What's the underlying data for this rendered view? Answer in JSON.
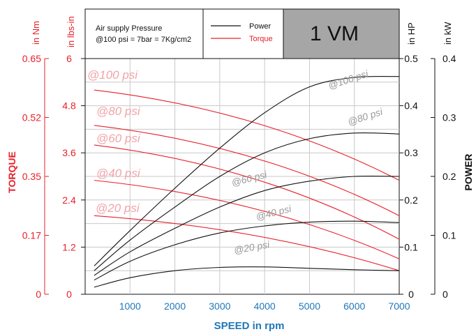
{
  "chart_data": {
    "type": "line",
    "model": "1 VM",
    "header": {
      "supply_line1": "Air supply Pressure",
      "supply_line2": "@100 psi = 7bar = 7Kg/cm2",
      "legend_power": "Power",
      "legend_torque": "Torque"
    },
    "colors": {
      "torque": "#e8202a",
      "power": "#111111",
      "speed_axis": "#1f77b8",
      "model_box": "#a6a6a6",
      "grid": "#c8c8c8"
    },
    "x_axis": {
      "title": "SPEED in rpm",
      "range": [
        0,
        7000
      ],
      "ticks": [
        "1000",
        "2000",
        "3000",
        "4000",
        "5000",
        "6000",
        "7000"
      ]
    },
    "torque_axes": {
      "title": "TORQUE",
      "nm_unit": "in Nm",
      "nm_ticks": [
        "0.65",
        "0.52",
        "0.35",
        "0.17",
        "0"
      ],
      "lbsin_unit": "in lbs-in",
      "lbsin_ticks": [
        "6",
        "4.8",
        "3.6",
        "2.4",
        "1.2",
        "0"
      ],
      "lbsin_range": [
        0,
        6
      ]
    },
    "power_axes": {
      "title": "POWER",
      "hp_unit": "in HP",
      "hp_ticks": [
        "0.5",
        "0.4",
        "0.3",
        "0.2",
        "0.1",
        "0"
      ],
      "hp_range": [
        0,
        0.5
      ],
      "kw_unit": "in kW",
      "kw_ticks": [
        "0.4",
        "0.3",
        "0.2",
        "0.1",
        "0"
      ]
    },
    "torque_series": [
      {
        "label": "@100 psi",
        "x": [
          200,
          7000
        ],
        "y": [
          5.2,
          2.9
        ]
      },
      {
        "label": "@80 psi",
        "x": [
          200,
          7000
        ],
        "y": [
          4.3,
          2.0
        ]
      },
      {
        "label": "@60 psi",
        "x": [
          200,
          7000
        ],
        "y": [
          3.8,
          1.4
        ]
      },
      {
        "label": "@40 psi",
        "x": [
          200,
          7000
        ],
        "y": [
          2.9,
          0.9
        ]
      },
      {
        "label": "@20 psi",
        "x": [
          200,
          7000
        ],
        "y": [
          2.0,
          0.6
        ]
      }
    ],
    "power_series": [
      {
        "label": "@100 psi",
        "x": [
          200,
          1000,
          2000,
          3000,
          4000,
          5000,
          6000,
          7000
        ],
        "y": [
          0.06,
          0.135,
          0.225,
          0.31,
          0.385,
          0.44,
          0.46,
          0.462
        ]
      },
      {
        "label": "@80 psi",
        "x": [
          200,
          1000,
          2000,
          3000,
          4000,
          5000,
          6000,
          7000
        ],
        "y": [
          0.05,
          0.115,
          0.185,
          0.25,
          0.3,
          0.33,
          0.342,
          0.34
        ]
      },
      {
        "label": "@60 psi",
        "x": [
          200,
          1000,
          2000,
          3000,
          4000,
          5000,
          6000,
          7000
        ],
        "y": [
          0.04,
          0.09,
          0.14,
          0.185,
          0.22,
          0.24,
          0.25,
          0.25
        ]
      },
      {
        "label": "@40 psi",
        "x": [
          200,
          1000,
          2000,
          3000,
          4000,
          5000,
          6000,
          7000
        ],
        "y": [
          0.03,
          0.07,
          0.105,
          0.13,
          0.145,
          0.153,
          0.155,
          0.152
        ]
      },
      {
        "label": "@20 psi",
        "x": [
          200,
          1000,
          2000,
          3000,
          4000,
          5000,
          6000,
          7000
        ],
        "y": [
          0.015,
          0.035,
          0.05,
          0.057,
          0.058,
          0.055,
          0.052,
          0.05
        ]
      }
    ]
  }
}
